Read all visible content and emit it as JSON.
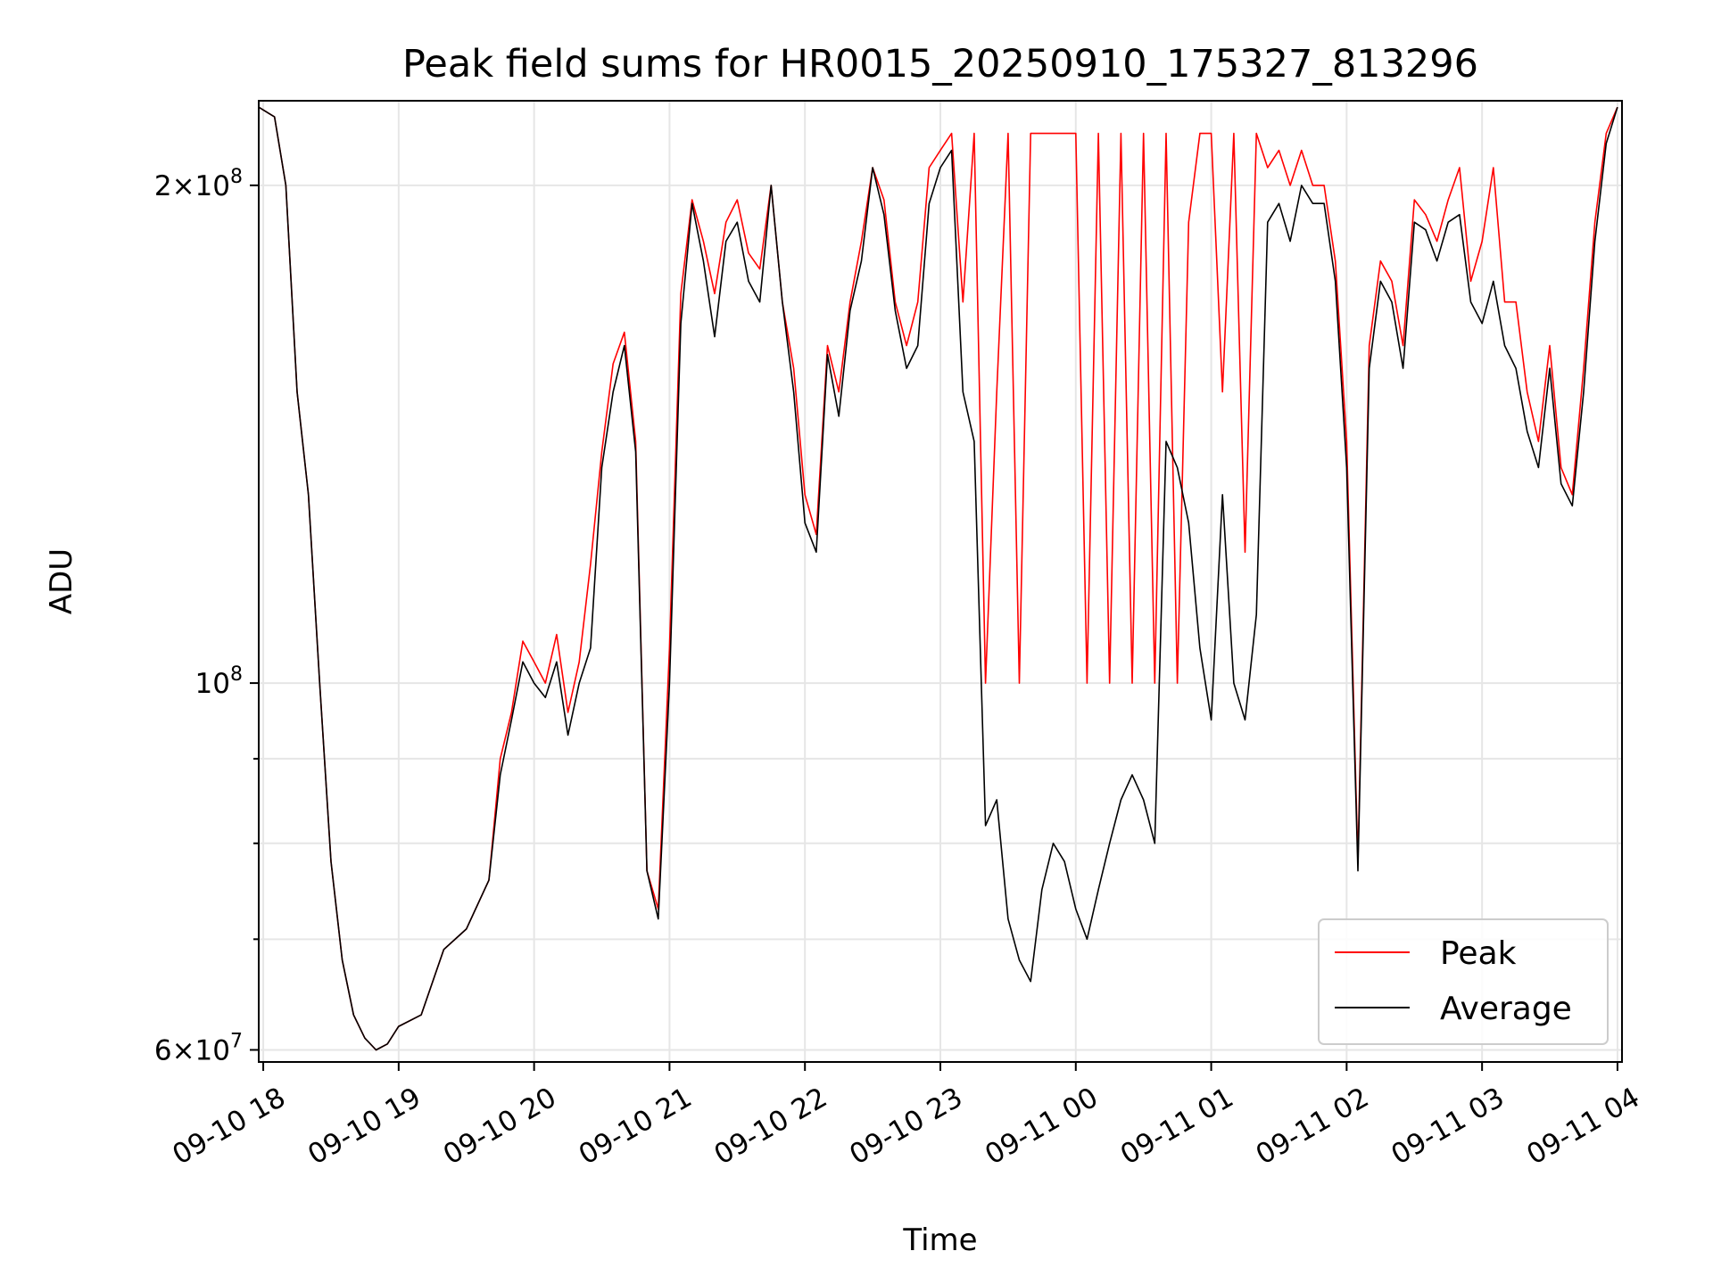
{
  "chart_data": {
    "type": "line",
    "title": "Peak field sums for HR0015_20250910_175327_813296",
    "xlabel": "Time",
    "ylabel": "ADU",
    "yscale": "log",
    "ylim": [
      59000000,
      225000000
    ],
    "xlim": [
      "09-10 17:58",
      "09-11 04:02"
    ],
    "grid": true,
    "legend_position": "lower-right",
    "x_ticks": [
      "09-10 18",
      "09-10 19",
      "09-10 20",
      "09-10 21",
      "09-10 22",
      "09-10 23",
      "09-11 00",
      "09-11 01",
      "09-11 02",
      "09-11 03",
      "09-11 04"
    ],
    "y_ticks": [
      {
        "value": 60000000,
        "mantissa": "6",
        "exponent": "7"
      },
      {
        "value": 100000000,
        "mantissa": "",
        "exponent": "8"
      },
      {
        "value": 200000000,
        "mantissa": "2",
        "exponent": "8"
      }
    ],
    "x": [
      "09-10 17:58",
      "09-10 18:05",
      "09-10 18:10",
      "09-10 18:15",
      "09-10 18:20",
      "09-10 18:25",
      "09-10 18:30",
      "09-10 18:35",
      "09-10 18:40",
      "09-10 18:45",
      "09-10 18:50",
      "09-10 18:55",
      "09-10 19:00",
      "09-10 19:10",
      "09-10 19:20",
      "09-10 19:30",
      "09-10 19:40",
      "09-10 19:45",
      "09-10 19:50",
      "09-10 19:55",
      "09-10 20:00",
      "09-10 20:05",
      "09-10 20:10",
      "09-10 20:15",
      "09-10 20:20",
      "09-10 20:25",
      "09-10 20:30",
      "09-10 20:35",
      "09-10 20:40",
      "09-10 20:45",
      "09-10 20:50",
      "09-10 20:55",
      "09-10 21:00",
      "09-10 21:05",
      "09-10 21:10",
      "09-10 21:15",
      "09-10 21:20",
      "09-10 21:25",
      "09-10 21:30",
      "09-10 21:35",
      "09-10 21:40",
      "09-10 21:45",
      "09-10 21:50",
      "09-10 21:55",
      "09-10 22:00",
      "09-10 22:05",
      "09-10 22:10",
      "09-10 22:15",
      "09-10 22:20",
      "09-10 22:25",
      "09-10 22:30",
      "09-10 22:35",
      "09-10 22:40",
      "09-10 22:45",
      "09-10 22:50",
      "09-10 22:55",
      "09-10 23:00",
      "09-10 23:05",
      "09-10 23:10",
      "09-10 23:15",
      "09-10 23:20",
      "09-10 23:25",
      "09-10 23:30",
      "09-10 23:35",
      "09-10 23:40",
      "09-10 23:45",
      "09-10 23:50",
      "09-10 23:55",
      "09-11 00:00",
      "09-11 00:05",
      "09-11 00:10",
      "09-11 00:15",
      "09-11 00:20",
      "09-11 00:25",
      "09-11 00:30",
      "09-11 00:35",
      "09-11 00:40",
      "09-11 00:45",
      "09-11 00:50",
      "09-11 00:55",
      "09-11 01:00",
      "09-11 01:05",
      "09-11 01:10",
      "09-11 01:15",
      "09-11 01:20",
      "09-11 01:25",
      "09-11 01:30",
      "09-11 01:35",
      "09-11 01:40",
      "09-11 01:45",
      "09-11 01:50",
      "09-11 01:55",
      "09-11 02:00",
      "09-11 02:05",
      "09-11 02:10",
      "09-11 02:15",
      "09-11 02:20",
      "09-11 02:25",
      "09-11 02:30",
      "09-11 02:35",
      "09-11 02:40",
      "09-11 02:45",
      "09-11 02:50",
      "09-11 02:55",
      "09-11 03:00",
      "09-11 03:05",
      "09-11 03:10",
      "09-11 03:15",
      "09-11 03:20",
      "09-11 03:25",
      "09-11 03:30",
      "09-11 03:35",
      "09-11 03:40",
      "09-11 03:45",
      "09-11 03:50",
      "09-11 03:55",
      "09-11 04:00"
    ],
    "series": [
      {
        "name": "Peak",
        "color": "#ff0000",
        "values": [
          223000000,
          220000000,
          200000000,
          150000000,
          130000000,
          100000000,
          78000000,
          68000000,
          63000000,
          61000000,
          60000000,
          60500000,
          62000000,
          63000000,
          69000000,
          71000000,
          76000000,
          90000000,
          96000000,
          106000000,
          103000000,
          100000000,
          107000000,
          96000000,
          103000000,
          118000000,
          138000000,
          156000000,
          163000000,
          140000000,
          77000000,
          73000000,
          105000000,
          172000000,
          196000000,
          185000000,
          172000000,
          190000000,
          196000000,
          182000000,
          178000000,
          200000000,
          170000000,
          155000000,
          130000000,
          123000000,
          160000000,
          150000000,
          170000000,
          185000000,
          205000000,
          196000000,
          170000000,
          160000000,
          170000000,
          205000000,
          210000000,
          215000000,
          170000000,
          215000000,
          100000000,
          150000000,
          215000000,
          100000000,
          215000000,
          215000000,
          215000000,
          215000000,
          215000000,
          100000000,
          215000000,
          100000000,
          215000000,
          100000000,
          215000000,
          100000000,
          215000000,
          100000000,
          190000000,
          215000000,
          215000000,
          150000000,
          215000000,
          120000000,
          215000000,
          205000000,
          210000000,
          200000000,
          210000000,
          200000000,
          200000000,
          180000000,
          140000000,
          78000000,
          160000000,
          180000000,
          175000000,
          160000000,
          196000000,
          192000000,
          185000000,
          196000000,
          205000000,
          175000000,
          185000000,
          205000000,
          170000000,
          170000000,
          150000000,
          140000000,
          160000000,
          135000000,
          130000000,
          155000000,
          190000000,
          215000000,
          223000000
        ]
      },
      {
        "name": "Average",
        "color": "#000000",
        "values": [
          223000000,
          220000000,
          200000000,
          150000000,
          130000000,
          100000000,
          78000000,
          68000000,
          63000000,
          61000000,
          60000000,
          60500000,
          62000000,
          63000000,
          69000000,
          71000000,
          76000000,
          88000000,
          95000000,
          103000000,
          100000000,
          98000000,
          103000000,
          93000000,
          100000000,
          105000000,
          135000000,
          150000000,
          160000000,
          138000000,
          77000000,
          72000000,
          100000000,
          165000000,
          195000000,
          180000000,
          162000000,
          185000000,
          190000000,
          175000000,
          170000000,
          200000000,
          170000000,
          150000000,
          125000000,
          120000000,
          158000000,
          145000000,
          168000000,
          180000000,
          205000000,
          192000000,
          168000000,
          155000000,
          160000000,
          195000000,
          205000000,
          210000000,
          150000000,
          140000000,
          82000000,
          85000000,
          72000000,
          68000000,
          66000000,
          75000000,
          80000000,
          78000000,
          73000000,
          70000000,
          75000000,
          80000000,
          85000000,
          88000000,
          85000000,
          80000000,
          140000000,
          135000000,
          125000000,
          105000000,
          95000000,
          130000000,
          100000000,
          95000000,
          110000000,
          190000000,
          195000000,
          185000000,
          200000000,
          195000000,
          195000000,
          175000000,
          135000000,
          77000000,
          155000000,
          175000000,
          170000000,
          155000000,
          190000000,
          188000000,
          180000000,
          190000000,
          192000000,
          170000000,
          165000000,
          175000000,
          160000000,
          155000000,
          142000000,
          135000000,
          155000000,
          132000000,
          128000000,
          150000000,
          185000000,
          212000000,
          223000000
        ]
      }
    ]
  }
}
